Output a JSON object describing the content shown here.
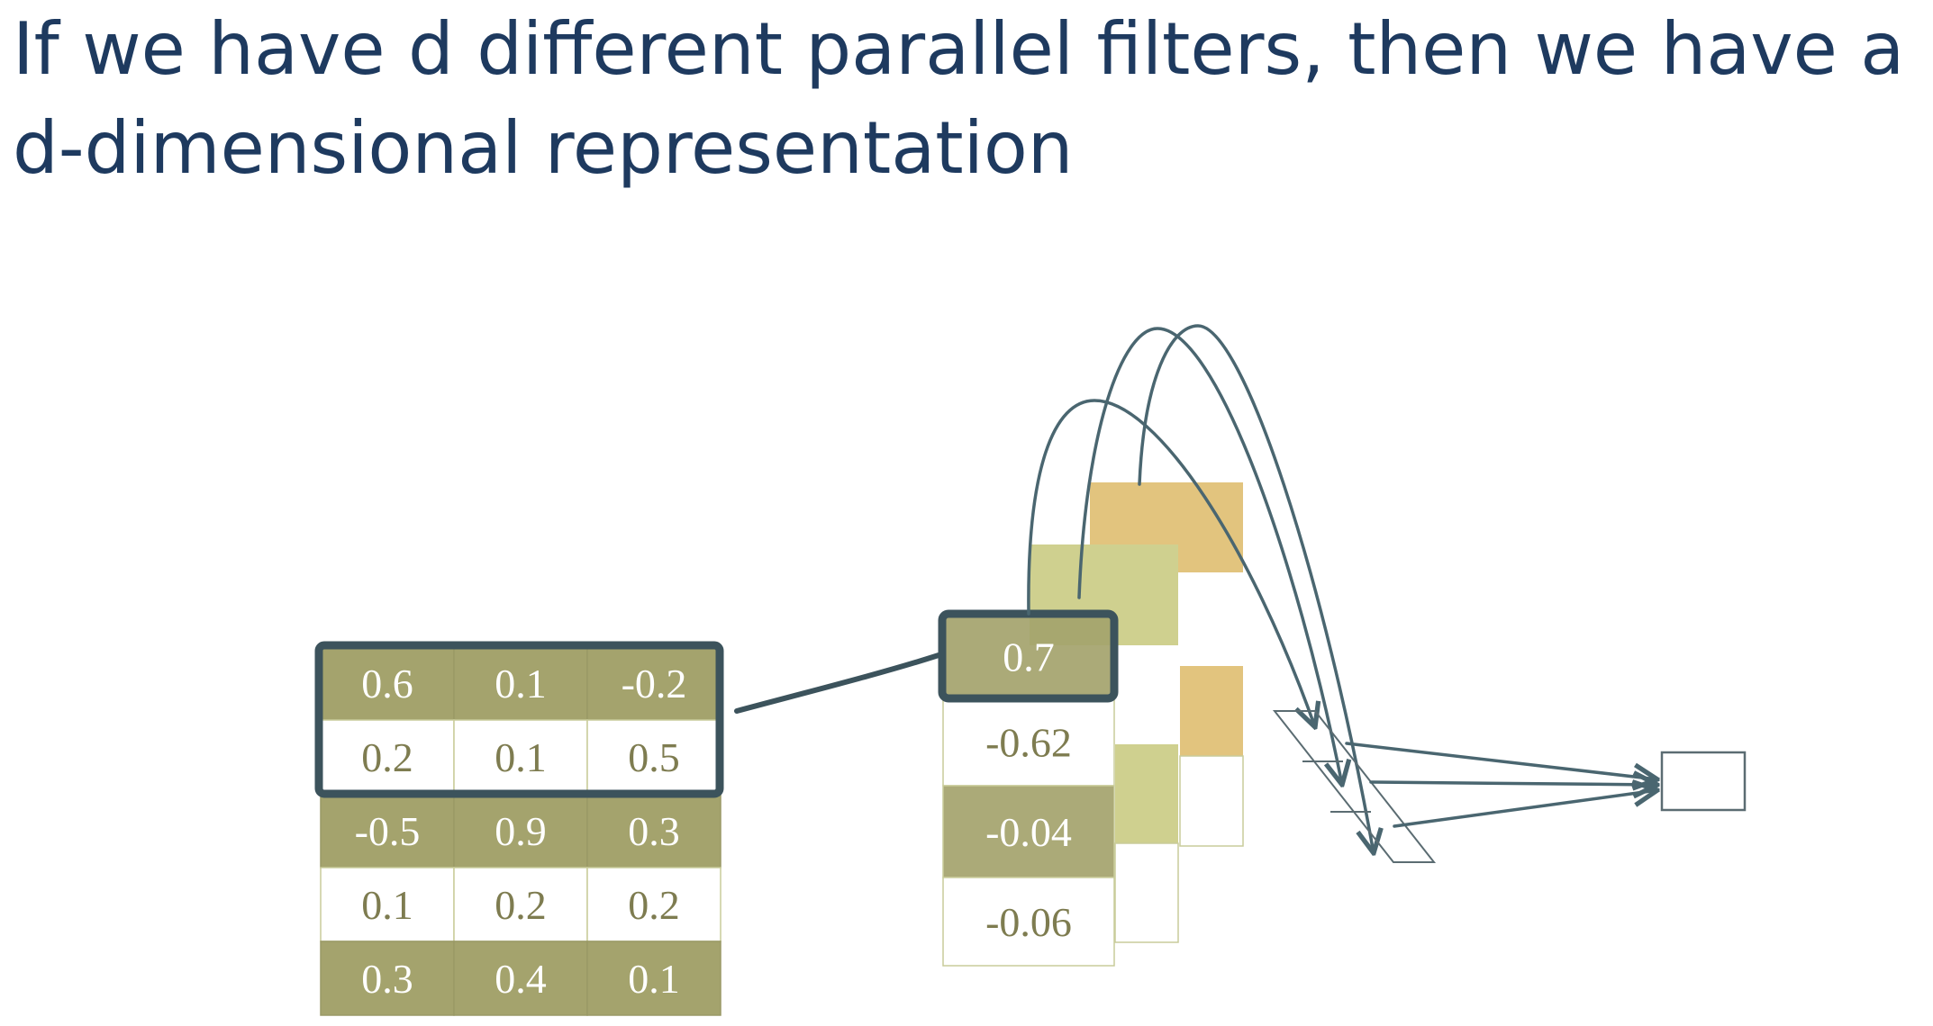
{
  "title": {
    "line1": "If we have d different parallel filters, then we have a",
    "line2": "d-dimensional representation"
  },
  "colors": {
    "title": "#1e3a5f",
    "olive_dark": "#a4a36d",
    "olive_light": "#cfd08f",
    "gold": "#e2c47e",
    "cell_border": "#c9cc9a",
    "text_on_fill": "#ffffff",
    "text_on_white": "#7e7c50",
    "arrow": "#4a6670"
  },
  "input_matrix": {
    "rows": [
      [
        "0.6",
        "0.1",
        "-0.2"
      ],
      [
        "0.2",
        "0.1",
        "0.5"
      ],
      [
        "-0.5",
        "0.9",
        "0.3"
      ],
      [
        "0.1",
        "0.2",
        "0.2"
      ],
      [
        "0.3",
        "0.4",
        "0.1"
      ]
    ],
    "row_fill": [
      "dark",
      "white",
      "dark",
      "white",
      "dark"
    ]
  },
  "filter_output": {
    "values": [
      "0.7",
      "-0.62",
      "-0.04",
      "-0.06"
    ],
    "fill": [
      "dark",
      "white",
      "dark",
      "white"
    ]
  }
}
